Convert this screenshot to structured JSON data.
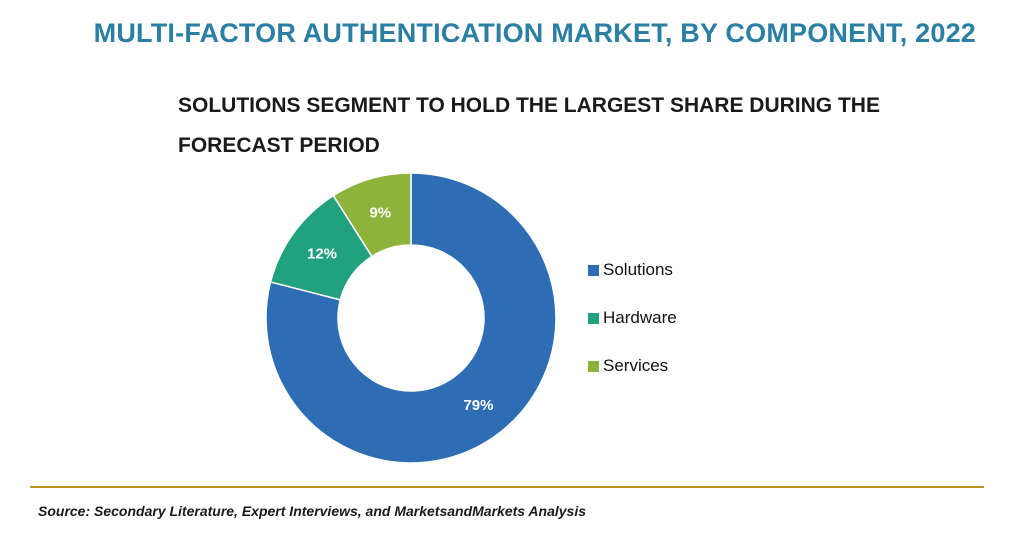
{
  "header": {
    "title": "MULTI-FACTOR AUTHENTICATION MARKET, BY COMPONENT, 2022",
    "subtitle": "SOLUTIONS SEGMENT TO HOLD THE LARGEST SHARE DURING THE FORECAST PERIOD"
  },
  "chart_data": {
    "type": "pie",
    "donut": true,
    "title": "MULTI-FACTOR AUTHENTICATION MARKET, BY COMPONENT, 2022",
    "subtitle": "SOLUTIONS SEGMENT TO HOLD THE LARGEST SHARE DURING THE FORECAST PERIOD",
    "categories": [
      "Solutions",
      "Hardware",
      "Services"
    ],
    "values": [
      79,
      12,
      9
    ],
    "labels": [
      "79%",
      "12%",
      "9%"
    ],
    "colors": [
      "#2e6db4",
      "#22a17f",
      "#8db33a"
    ],
    "legend_position": "right"
  },
  "footer": {
    "source": "Source: Secondary Literature, Expert Interviews, and MarketsandMarkets Analysis"
  }
}
